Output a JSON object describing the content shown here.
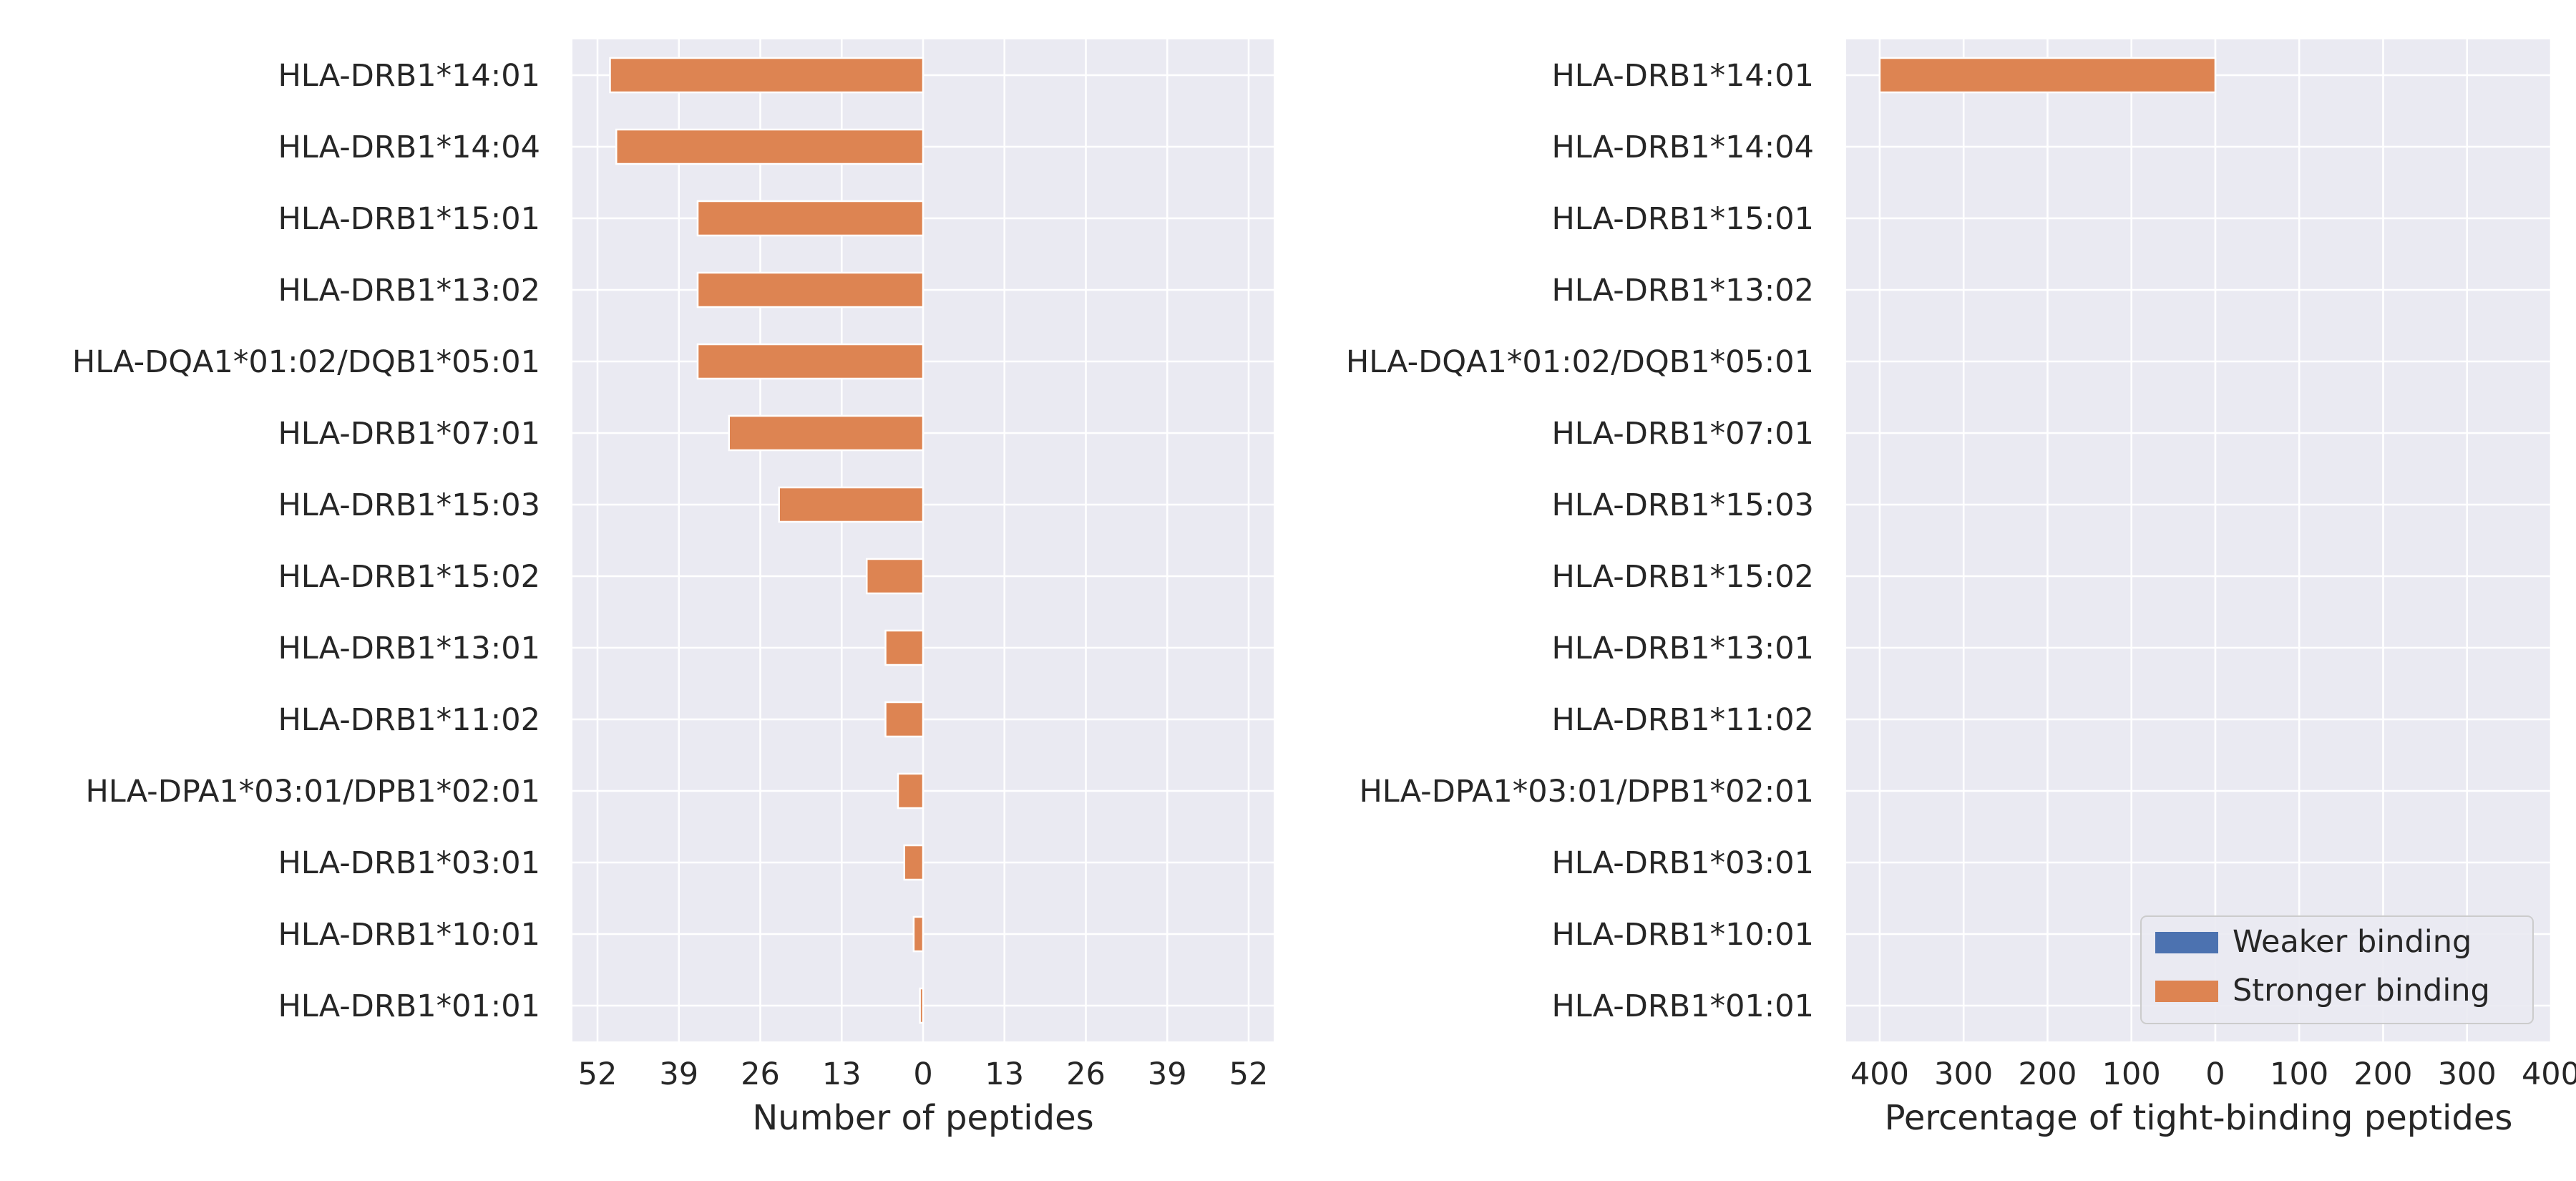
{
  "chart_data": [
    {
      "type": "bar",
      "orientation": "horizontal",
      "diverging": true,
      "categories": [
        "HLA-DRB1*14:01",
        "HLA-DRB1*14:04",
        "HLA-DRB1*15:01",
        "HLA-DRB1*13:02",
        "HLA-DQA1*01:02/DQB1*05:01",
        "HLA-DRB1*07:01",
        "HLA-DRB1*15:03",
        "HLA-DRB1*15:02",
        "HLA-DRB1*13:01",
        "HLA-DRB1*11:02",
        "HLA-DPA1*03:01/DPB1*02:01",
        "HLA-DRB1*03:01",
        "HLA-DRB1*10:01",
        "HLA-DRB1*01:01"
      ],
      "series": [
        {
          "name": "Weaker binding",
          "color": "#4c72b0",
          "side": "right",
          "values": [
            0,
            0,
            0,
            0,
            0,
            0,
            0,
            0,
            0,
            0,
            0,
            0,
            0,
            0
          ]
        },
        {
          "name": "Stronger binding",
          "color": "#dd8452",
          "side": "left",
          "values": [
            50,
            49,
            36,
            36,
            36,
            31,
            23,
            9,
            6,
            6,
            4,
            3,
            1.5,
            0.5
          ]
        }
      ],
      "xlabel": "Number of peptides",
      "xlim": [
        -56,
        56
      ],
      "xticks": [
        -52,
        -39,
        -26,
        -13,
        0,
        13,
        26,
        39,
        52
      ],
      "xtick_labels": [
        "52",
        "39",
        "26",
        "13",
        "0",
        "13",
        "26",
        "39",
        "52"
      ],
      "grid": true
    },
    {
      "type": "bar",
      "orientation": "horizontal",
      "diverging": true,
      "categories": [
        "HLA-DRB1*14:01",
        "HLA-DRB1*14:04",
        "HLA-DRB1*15:01",
        "HLA-DRB1*13:02",
        "HLA-DQA1*01:02/DQB1*05:01",
        "HLA-DRB1*07:01",
        "HLA-DRB1*15:03",
        "HLA-DRB1*15:02",
        "HLA-DRB1*13:01",
        "HLA-DRB1*11:02",
        "HLA-DPA1*03:01/DPB1*02:01",
        "HLA-DRB1*03:01",
        "HLA-DRB1*10:01",
        "HLA-DRB1*01:01"
      ],
      "series": [
        {
          "name": "Weaker binding",
          "color": "#4c72b0",
          "side": "right",
          "values": [
            0,
            0,
            0,
            0,
            0,
            0,
            0,
            0,
            0,
            0,
            0,
            0,
            0,
            0
          ]
        },
        {
          "name": "Stronger binding",
          "color": "#dd8452",
          "side": "left",
          "values": [
            400,
            0,
            0,
            0,
            0,
            0,
            0,
            0,
            0,
            0,
            0,
            0,
            0,
            0
          ]
        }
      ],
      "xlabel": "Percentage of tight-binding peptides",
      "xlim": [
        -440,
        400
      ],
      "xticks": [
        -400,
        -300,
        -200,
        -100,
        0,
        100,
        200,
        300,
        400
      ],
      "xtick_labels": [
        "400",
        "300",
        "200",
        "100",
        "0",
        "100",
        "200",
        "300",
        "400"
      ],
      "grid": true,
      "legend": {
        "placement": "lower-right",
        "entries": [
          "Weaker binding",
          "Stronger binding"
        ]
      }
    }
  ]
}
